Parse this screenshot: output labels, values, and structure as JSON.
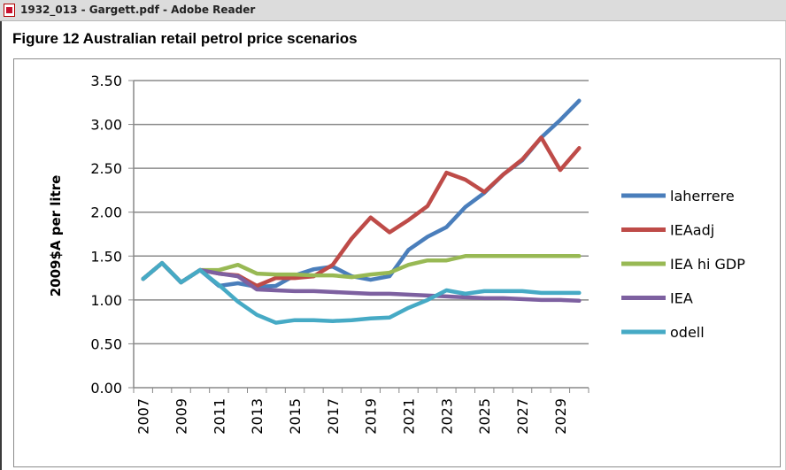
{
  "window": {
    "title": "1932_013 - Gargett.pdf - Adobe Reader",
    "icon": "pdf-document-icon"
  },
  "figure_title": "Figure 12 Australian retail petrol price scenarios",
  "chart_data": {
    "type": "line",
    "title": "Figure 12 Australian retail petrol price scenarios",
    "xlabel": "",
    "ylabel": "2009$A per litre",
    "x": [
      2007,
      2008,
      2009,
      2010,
      2011,
      2012,
      2013,
      2014,
      2015,
      2016,
      2017,
      2018,
      2019,
      2020,
      2021,
      2022,
      2023,
      2024,
      2025,
      2026,
      2027,
      2028,
      2029,
      2030
    ],
    "x_tick_labels": [
      "2007",
      "2009",
      "2011",
      "2013",
      "2015",
      "2017",
      "2019",
      "2021",
      "2023",
      "2025",
      "2027",
      "2029"
    ],
    "y_tick_labels": [
      "0.00",
      "0.50",
      "1.00",
      "1.50",
      "2.00",
      "2.50",
      "3.00",
      "3.50"
    ],
    "ylim": [
      0,
      3.5
    ],
    "grid": true,
    "legend_position": "right",
    "series": [
      {
        "name": "laherrere",
        "color": "#4a7ebb",
        "values": [
          1.24,
          1.42,
          1.2,
          1.34,
          1.16,
          1.19,
          1.15,
          1.16,
          1.28,
          1.35,
          1.38,
          1.27,
          1.23,
          1.27,
          1.57,
          1.72,
          1.83,
          2.06,
          2.22,
          2.43,
          2.59,
          2.85,
          3.05,
          3.27
        ]
      },
      {
        "name": "IEAadj",
        "color": "#be4b48",
        "values": [
          1.24,
          1.42,
          1.2,
          1.34,
          1.3,
          1.28,
          1.16,
          1.25,
          1.25,
          1.27,
          1.4,
          1.7,
          1.94,
          1.77,
          1.91,
          2.07,
          2.45,
          2.37,
          2.23,
          2.43,
          2.6,
          2.85,
          2.48,
          2.73
        ]
      },
      {
        "name": "IEA hi GDP",
        "color": "#98b954",
        "values": [
          1.24,
          1.42,
          1.2,
          1.34,
          1.34,
          1.4,
          1.3,
          1.29,
          1.29,
          1.28,
          1.28,
          1.26,
          1.29,
          1.31,
          1.4,
          1.45,
          1.45,
          1.5,
          1.5,
          1.5,
          1.5,
          1.5,
          1.5,
          1.5
        ]
      },
      {
        "name": "IEA",
        "color": "#7d60a0",
        "values": [
          1.24,
          1.42,
          1.2,
          1.34,
          1.3,
          1.27,
          1.12,
          1.11,
          1.1,
          1.1,
          1.09,
          1.08,
          1.07,
          1.07,
          1.06,
          1.05,
          1.04,
          1.03,
          1.02,
          1.02,
          1.01,
          1.0,
          1.0,
          0.99
        ]
      },
      {
        "name": "odell",
        "color": "#46aac5",
        "values": [
          1.24,
          1.42,
          1.2,
          1.34,
          1.17,
          0.98,
          0.83,
          0.74,
          0.77,
          0.77,
          0.76,
          0.77,
          0.79,
          0.8,
          0.91,
          1.0,
          1.11,
          1.07,
          1.1,
          1.1,
          1.1,
          1.08,
          1.08,
          1.08
        ]
      }
    ]
  }
}
